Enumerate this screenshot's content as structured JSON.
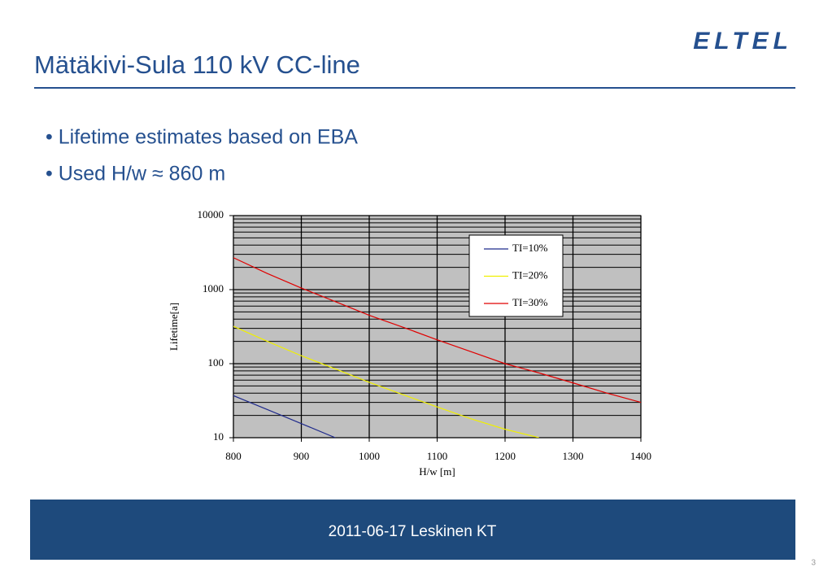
{
  "slide": {
    "title": "Mätäkivi-Sula 110 kV CC-line",
    "logo": "ELTEL",
    "bullets": [
      "• Lifetime estimates based on EBA",
      "• Used H/w ≈ 860 m"
    ],
    "footer": "2011-06-17 Leskinen KT",
    "page_number": "3"
  },
  "chart_data": {
    "type": "line",
    "x_label": "H/w  [m]",
    "y_label": "Lifetime[a]",
    "x": [
      800,
      850,
      900,
      950,
      1000,
      1050,
      1100,
      1150,
      1200,
      1250,
      1300,
      1350,
      1400
    ],
    "series": [
      {
        "name": "TI=10%",
        "color": "#1f2a8c",
        "values": [
          37,
          24,
          15.5,
          10,
          null,
          null,
          null,
          null,
          null,
          null,
          null,
          null,
          null
        ]
      },
      {
        "name": "TI=20%",
        "color": "#f0f000",
        "values": [
          320,
          200,
          128,
          85,
          56,
          38,
          26,
          18,
          13,
          10,
          null,
          null,
          null
        ]
      },
      {
        "name": "TI=30%",
        "color": "#e00000",
        "values": [
          2700,
          1650,
          1050,
          690,
          450,
          310,
          210,
          145,
          100,
          75,
          55,
          40,
          30
        ]
      }
    ],
    "xlim": [
      800,
      1400
    ],
    "xticks": [
      800,
      900,
      1000,
      1100,
      1200,
      1300,
      1400
    ],
    "ylim": [
      10,
      10000
    ],
    "yticks": [
      10,
      100,
      1000,
      10000
    ],
    "log_y": true,
    "grid": true,
    "legend": "upper right",
    "plot_background": "#c0c0c0"
  }
}
